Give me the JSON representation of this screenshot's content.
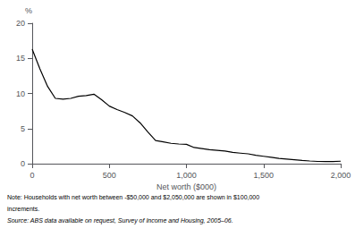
{
  "chart_data": {
    "type": "line",
    "x": [
      0,
      50,
      100,
      150,
      200,
      250,
      300,
      350,
      400,
      450,
      500,
      550,
      600,
      650,
      700,
      750,
      800,
      850,
      900,
      950,
      1000,
      1050,
      1100,
      1150,
      1200,
      1250,
      1300,
      1350,
      1400,
      1450,
      1500,
      1550,
      1600,
      1650,
      1700,
      1750,
      1800,
      1850,
      1900,
      1950,
      2000
    ],
    "values": [
      16.3,
      13.5,
      11.0,
      9.3,
      9.2,
      9.3,
      9.6,
      9.7,
      9.9,
      9.1,
      8.2,
      7.7,
      7.3,
      6.8,
      5.8,
      4.5,
      3.3,
      3.1,
      2.9,
      2.8,
      2.75,
      2.3,
      2.15,
      2.0,
      1.9,
      1.8,
      1.6,
      1.5,
      1.4,
      1.2,
      1.05,
      0.9,
      0.75,
      0.65,
      0.55,
      0.45,
      0.38,
      0.32,
      0.3,
      0.3,
      0.35
    ],
    "color": "#000000",
    "xlabel": "Net worth ($000)",
    "ylabel": "%",
    "xlim": [
      0,
      2000
    ],
    "ylim": [
      0,
      20
    ],
    "xticks": [
      0,
      500,
      1000,
      1500,
      2000
    ],
    "yticks": [
      0,
      5,
      10,
      15,
      20
    ],
    "grid": false,
    "annotations": [
      "Note: Households with net worth between -$50,000 and $2,050,000 are shown in $100,000",
      "increments.",
      "Source: ABS data available on request, Survey of Income and Housing, 2005–06."
    ]
  }
}
